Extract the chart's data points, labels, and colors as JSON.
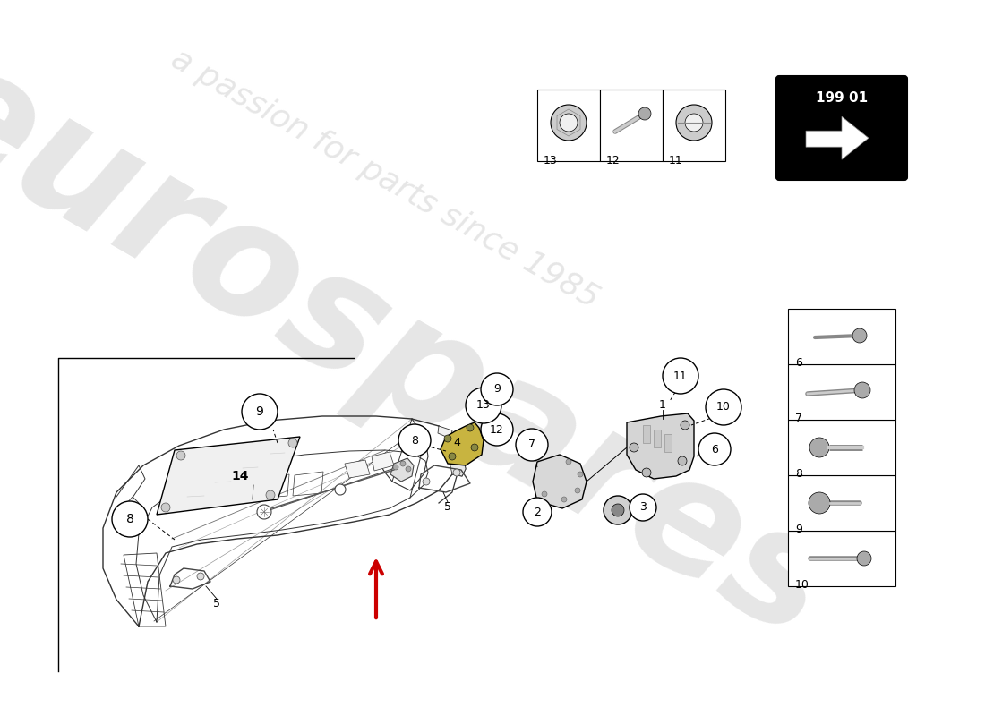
{
  "page_code": "199 01",
  "bg_color": "#ffffff",
  "watermark1": "eurospares",
  "watermark2": "a passion for parts since 1985",
  "car_color": "#333333",
  "right_panel": [
    {
      "num": "10"
    },
    {
      "num": "9"
    },
    {
      "num": "8"
    },
    {
      "num": "7"
    },
    {
      "num": "6"
    }
  ],
  "bottom_panel": [
    {
      "num": "13"
    },
    {
      "num": "12"
    },
    {
      "num": "11"
    }
  ],
  "arrow_color": "#cc0000"
}
